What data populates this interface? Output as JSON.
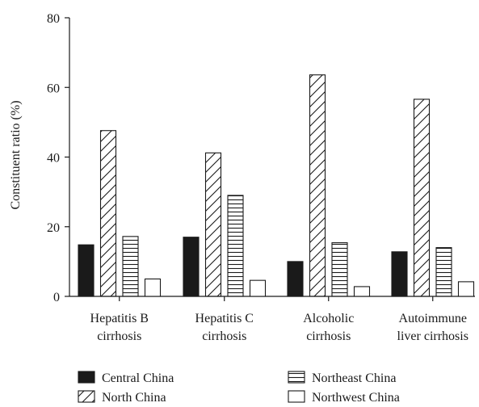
{
  "chart_data": {
    "type": "bar",
    "title": "",
    "xlabel": "",
    "ylabel": "Constituent ratio (%)",
    "ylim": [
      0,
      80
    ],
    "yticks": [
      0,
      20,
      40,
      60,
      80
    ],
    "grid": false,
    "legend_position": "bottom",
    "categories": [
      [
        "Hepatitis B",
        "cirrhosis"
      ],
      [
        "Hepatitis C",
        "cirrhosis"
      ],
      [
        "Alcoholic",
        "cirrhosis"
      ],
      [
        "Autoimmune",
        "liver cirrhosis"
      ]
    ],
    "series": [
      {
        "name": "Central China",
        "pattern": "solid",
        "color": "#1a1a1a",
        "values": [
          14.8,
          17.0,
          10.0,
          12.8
        ]
      },
      {
        "name": "North China",
        "pattern": "diagonal-hatch",
        "color": "#1a1a1a",
        "values": [
          47.6,
          41.2,
          63.6,
          56.6
        ]
      },
      {
        "name": "Northeast China",
        "pattern": "horizontal-hatch",
        "color": "#1a1a1a",
        "values": [
          17.2,
          29.0,
          15.4,
          14.0
        ]
      },
      {
        "name": "Northwest China",
        "pattern": "empty",
        "color": "#1a1a1a",
        "values": [
          5.0,
          4.6,
          2.8,
          4.2
        ]
      }
    ]
  }
}
